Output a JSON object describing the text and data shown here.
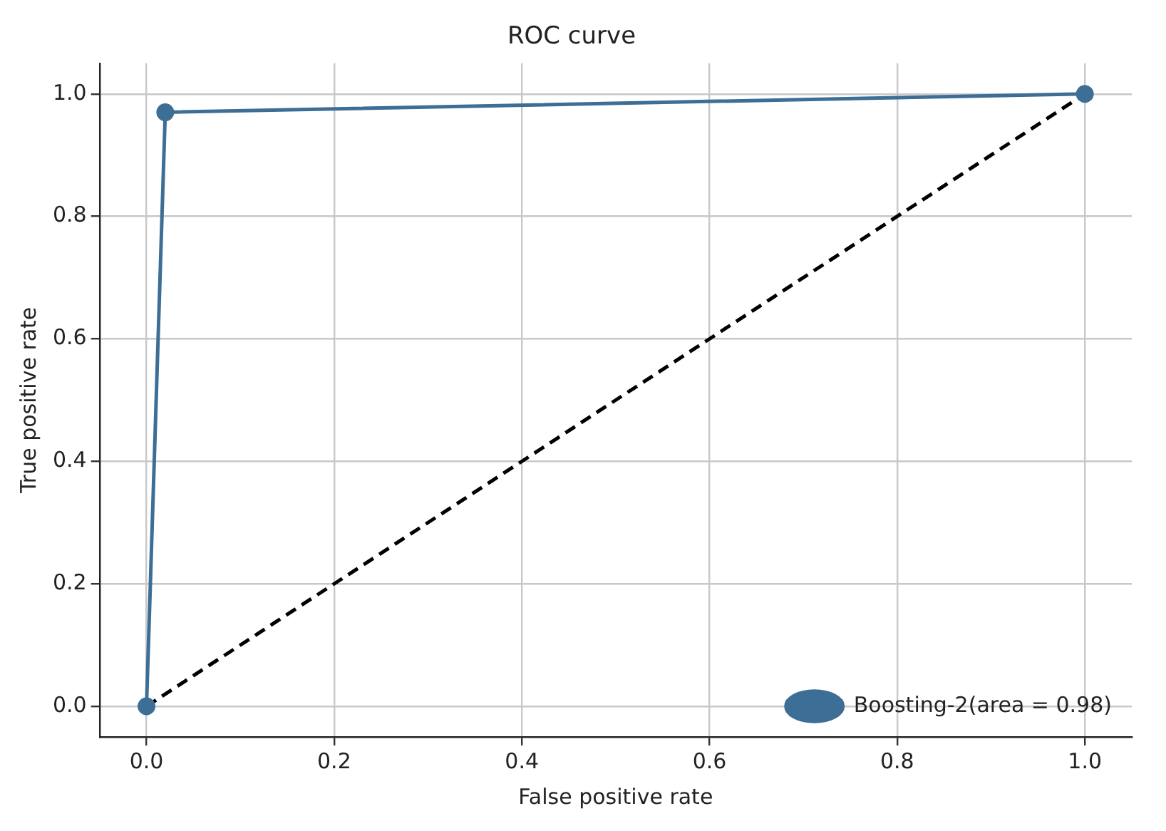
{
  "chart_data": {
    "type": "line",
    "title": "ROC curve",
    "xlabel": "False positive rate",
    "ylabel": "True positive rate",
    "xlim": [
      -0.05,
      1.05
    ],
    "ylim": [
      -0.05,
      1.05
    ],
    "xticks": [
      {
        "value": 0,
        "label": "0.0"
      },
      {
        "value": 0.2,
        "label": "0.2"
      },
      {
        "value": 0.4,
        "label": "0.4"
      },
      {
        "value": 0.6,
        "label": "0.6"
      },
      {
        "value": 0.8,
        "label": "0.8"
      },
      {
        "value": 1,
        "label": "1.0"
      }
    ],
    "yticks": [
      {
        "value": 0,
        "label": "0.0"
      },
      {
        "value": 0.2,
        "label": "0.2"
      },
      {
        "value": 0.4,
        "label": "0.4"
      },
      {
        "value": 0.6,
        "label": "0.6"
      },
      {
        "value": 0.8,
        "label": "0.8"
      },
      {
        "value": 1,
        "label": "1.0"
      }
    ],
    "grid": true,
    "legend": "bottom right",
    "series": [
      {
        "name": "Boosting-2(area = 0.98)",
        "color": "#3d6e96",
        "x": [
          0,
          0.02,
          1
        ],
        "values": [
          0,
          0.97,
          1
        ],
        "marker": "circle",
        "line_style": "solid"
      },
      {
        "color": "#000000",
        "x": [
          0,
          1
        ],
        "values": [
          0,
          1
        ],
        "marker": "none",
        "line_style": "dashed"
      }
    ]
  }
}
